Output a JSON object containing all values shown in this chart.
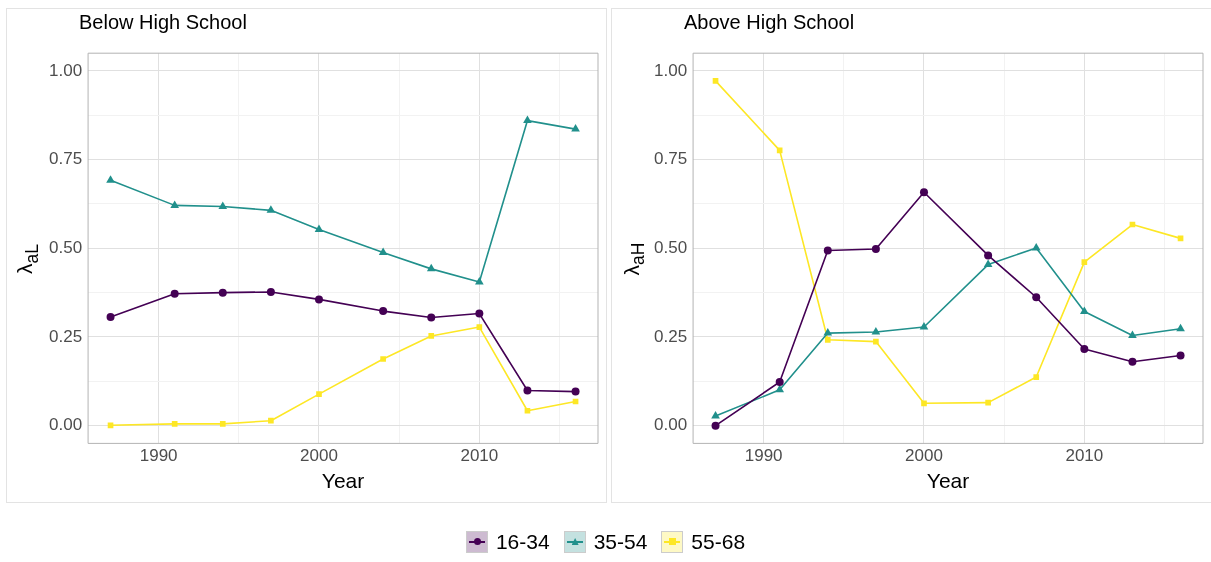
{
  "chart_data": [
    {
      "type": "line",
      "title": "Below High School",
      "xlabel": "Year",
      "ylabel": "λ$_{aL}$",
      "x": [
        1987,
        1991,
        1994,
        1997,
        2000,
        2004,
        2007,
        2010,
        2013,
        2016
      ],
      "series": [
        {
          "name": "16-34",
          "color": "#440154",
          "marker": "circle",
          "values": [
            0.306,
            0.372,
            0.375,
            0.377,
            0.356,
            0.323,
            0.305,
            0.316,
            0.099,
            0.096
          ]
        },
        {
          "name": "35-54",
          "color": "#21908c",
          "marker": "triangle",
          "values": [
            0.692,
            0.621,
            0.618,
            0.607,
            0.553,
            0.488,
            0.442,
            0.405,
            0.86,
            0.836
          ]
        },
        {
          "name": "55-68",
          "color": "#fde725",
          "marker": "square",
          "values": [
            0.001,
            0.005,
            0.005,
            0.014,
            0.089,
            0.188,
            0.253,
            0.278,
            0.042,
            0.068
          ]
        }
      ],
      "xlim": [
        1985.6,
        2017.4
      ],
      "xticks": [
        1990,
        {
          "value": 1995,
          "label": null
        },
        2000,
        {
          "value": 2005,
          "label": null
        },
        2010,
        {
          "value": 2015,
          "label": null
        }
      ],
      "ylim": [
        -0.05,
        1.05
      ],
      "yticks": [
        {
          "value": 0,
          "label": "0.00"
        },
        {
          "value": 0.125,
          "label": null
        },
        {
          "value": 0.25,
          "label": "0.25"
        },
        {
          "value": 0.375,
          "label": null
        },
        {
          "value": 0.5,
          "label": "0.50"
        },
        {
          "value": 0.625,
          "label": null
        },
        {
          "value": 0.75,
          "label": "0.75"
        },
        {
          "value": 0.875,
          "label": null
        },
        {
          "value": 1,
          "label": "1.00"
        }
      ],
      "grid": true,
      "line_style": "solid",
      "legend": "bottom"
    },
    {
      "type": "line",
      "title": "Above High School",
      "xlabel": "Year",
      "ylabel": "λ$_{aH}$",
      "x": [
        1987,
        1991,
        1994,
        1997,
        2000,
        2004,
        2007,
        2010,
        2013,
        2016
      ],
      "series": [
        {
          "name": "16-34",
          "color": "#440154",
          "marker": "circle",
          "values": [
            0,
            0.123,
            0.494,
            0.498,
            0.658,
            0.48,
            0.362,
            0.216,
            0.18,
            0.198
          ]
        },
        {
          "name": "35-54",
          "color": "#21908c",
          "marker": "triangle",
          "values": [
            0.027,
            0.101,
            0.261,
            0.264,
            0.278,
            0.454,
            0.501,
            0.322,
            0.254,
            0.273
          ]
        },
        {
          "name": "55-68",
          "color": "#fde725",
          "marker": "square",
          "values": [
            0.972,
            0.776,
            0.242,
            0.237,
            0.063,
            0.065,
            0.137,
            0.461,
            0.567,
            0.528
          ]
        }
      ],
      "xlim": [
        1985.6,
        2017.4
      ],
      "xticks": [
        1990,
        {
          "value": 1995,
          "label": null
        },
        2000,
        {
          "value": 2005,
          "label": null
        },
        2010,
        {
          "value": 2015,
          "label": null
        }
      ],
      "ylim": [
        -0.05,
        1.05
      ],
      "yticks": [
        {
          "value": 0,
          "label": "0.00"
        },
        {
          "value": 0.125,
          "label": null
        },
        {
          "value": 0.25,
          "label": "0.25"
        },
        {
          "value": 0.375,
          "label": null
        },
        {
          "value": 0.5,
          "label": "0.50"
        },
        {
          "value": 0.625,
          "label": null
        },
        {
          "value": 0.75,
          "label": "0.75"
        },
        {
          "value": 0.875,
          "label": null
        },
        {
          "value": 1,
          "label": "1.00"
        }
      ],
      "grid": true,
      "line_style": "solid",
      "legend": "bottom"
    }
  ]
}
